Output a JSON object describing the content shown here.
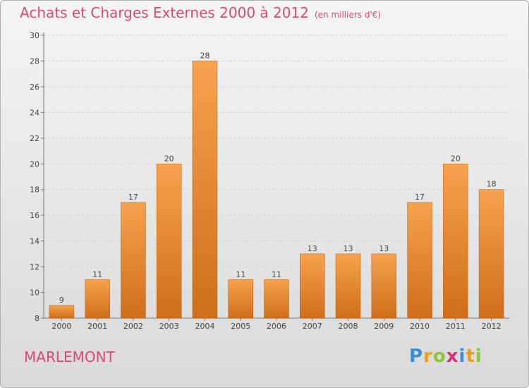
{
  "title": "Achats et Charges Externes 2000 à 2012",
  "subtitle": "(en milliers d'€)",
  "commune": "MARLEMONT",
  "logo": {
    "letters": [
      "P",
      "r",
      "o",
      "x",
      "i",
      "t",
      "i"
    ],
    "colors": [
      "#3a8fd1",
      "#e8a21a",
      "#8cc43c",
      "#d9307c",
      "#3a8fd1",
      "#e8a21a",
      "#8cc43c"
    ]
  },
  "colors": {
    "bar_top": "#f6a24e",
    "bar_bottom": "#cf6d1a",
    "bar_edge": "#b85f16",
    "title": "#d94a78",
    "grid": "#cfcfcf"
  },
  "chart_data": {
    "type": "bar",
    "title": "Achats et Charges Externes 2000 à 2012",
    "subtitle": "(en milliers d'€)",
    "categories": [
      "2000",
      "2001",
      "2002",
      "2003",
      "2004",
      "2005",
      "2006",
      "2007",
      "2008",
      "2009",
      "2010",
      "2011",
      "2012"
    ],
    "values": [
      9,
      11,
      17,
      20,
      28,
      11,
      11,
      13,
      13,
      13,
      17,
      20,
      18
    ],
    "ylim": [
      8,
      30
    ],
    "yticks": [
      8,
      10,
      12,
      14,
      16,
      18,
      20,
      22,
      24,
      26,
      28,
      30
    ],
    "grid": true
  }
}
